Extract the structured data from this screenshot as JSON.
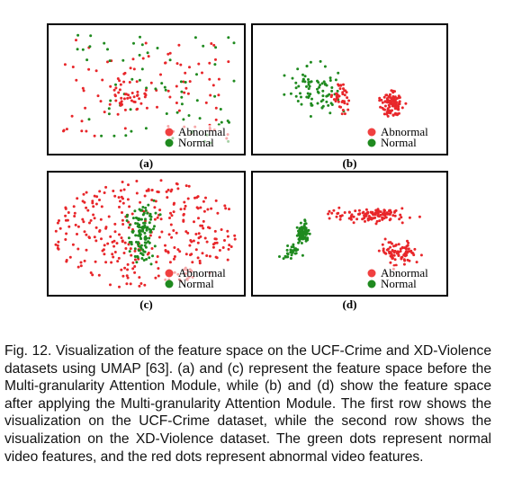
{
  "figure": {
    "panels": [
      {
        "label": "(a)",
        "legend": [
          "Abnormal",
          "Normal"
        ]
      },
      {
        "label": "(b)",
        "legend": [
          "Abnormal",
          "Normal"
        ]
      },
      {
        "label": "(c)",
        "legend": [
          "Abnormal",
          "Normal"
        ]
      },
      {
        "label": "(d)",
        "legend": [
          "Abnormal",
          "Normal"
        ]
      }
    ]
  },
  "caption": "Fig. 12. Visualization of the feature space on the UCF-Crime and XD-Violence datasets using UMAP [63]. (a) and (c) represent the feature space before the Multi-granularity Attention Module, while (b) and (d) show the feature space after applying the Multi-granularity Attention Module. The first row shows the visualization on the UCF-Crime dataset, while the second row shows the visualization on the XD-Violence dataset. The green dots represent normal video features, and the red dots represent abnormal video features."
}
